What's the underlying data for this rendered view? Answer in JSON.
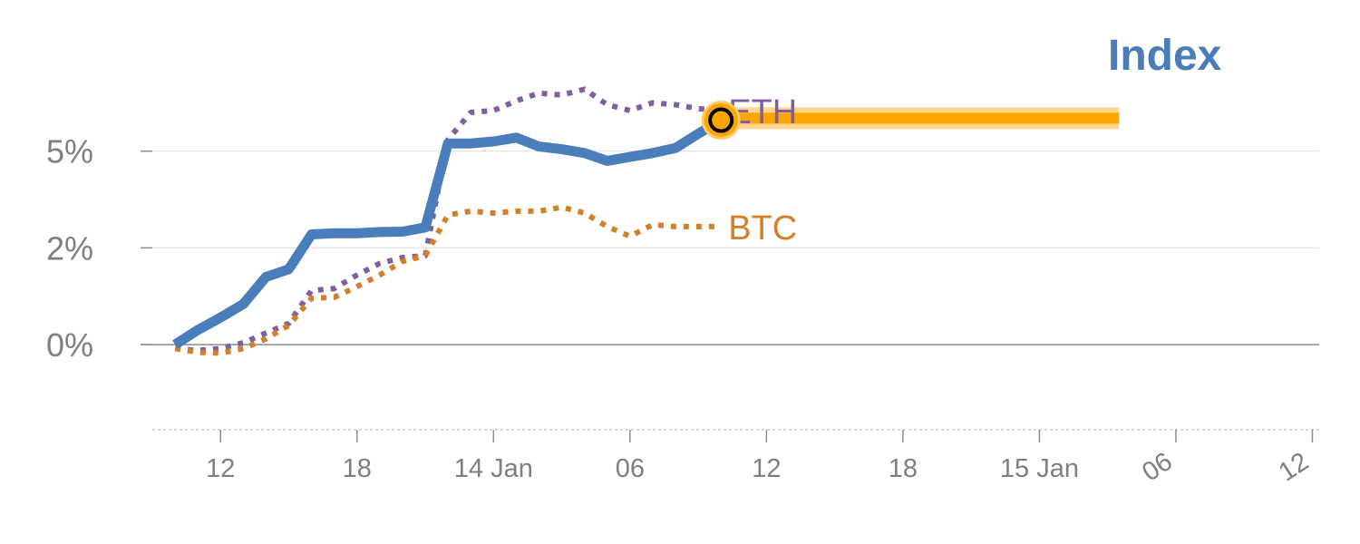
{
  "chart_data": {
    "type": "line",
    "title": "Index",
    "xlabel": "",
    "ylabel": "",
    "y_tick_labels": [
      "0%",
      "2%",
      "5%"
    ],
    "y_tick_values": [
      0,
      2.5,
      5
    ],
    "ylim": [
      -2.2,
      7.5
    ],
    "x_tick_labels": [
      "12",
      "18",
      "14 Jan",
      "06",
      "12",
      "18",
      "15 Jan",
      "06",
      "12"
    ],
    "x_tick_hours": [
      12,
      18,
      24,
      30,
      36,
      42,
      48,
      54,
      60
    ],
    "xlim_hours": [
      9.0,
      60.3
    ],
    "grid": true,
    "legend": "none",
    "series": [
      {
        "name": "Index",
        "color": "#4a7ebb",
        "style": "solid",
        "x_hours": [
          10,
          11,
          12,
          13,
          14,
          15,
          16,
          17,
          18,
          19,
          20,
          21,
          22,
          23,
          24,
          25,
          26,
          27,
          28,
          29,
          30,
          31,
          32,
          33,
          34
        ],
        "values": [
          0.0,
          0.38,
          0.7,
          1.05,
          1.75,
          1.95,
          2.85,
          2.88,
          2.88,
          2.91,
          2.92,
          3.03,
          5.2,
          5.2,
          5.25,
          5.35,
          5.12,
          5.05,
          4.95,
          4.75,
          4.85,
          4.95,
          5.08,
          5.45,
          5.8
        ]
      },
      {
        "name": "ETH",
        "color": "#7f5fa0",
        "style": "dotted",
        "x_hours": [
          10,
          11,
          12,
          13,
          14,
          15,
          16,
          17,
          18,
          19,
          20,
          21,
          22,
          23,
          24,
          25,
          26,
          27,
          28,
          29,
          30,
          31,
          32,
          33,
          34
        ],
        "values": [
          -0.1,
          -0.15,
          -0.1,
          0.05,
          0.3,
          0.55,
          1.4,
          1.45,
          1.8,
          2.1,
          2.25,
          2.3,
          5.3,
          6.0,
          6.05,
          6.3,
          6.5,
          6.45,
          6.6,
          6.2,
          6.05,
          6.25,
          6.2,
          6.1,
          6.05
        ]
      },
      {
        "name": "BTC",
        "color": "#d27f2a",
        "style": "dotted",
        "x_hours": [
          10,
          11,
          12,
          13,
          14,
          15,
          16,
          17,
          18,
          19,
          20,
          21,
          22,
          23,
          24,
          25,
          26,
          27,
          28,
          29,
          30,
          31,
          32,
          33,
          34
        ],
        "values": [
          -0.1,
          -0.2,
          -0.22,
          -0.1,
          0.15,
          0.5,
          1.2,
          1.22,
          1.5,
          1.8,
          2.15,
          2.3,
          3.35,
          3.45,
          3.4,
          3.45,
          3.45,
          3.55,
          3.4,
          3.05,
          2.8,
          3.1,
          3.05,
          3.05,
          3.05
        ]
      }
    ],
    "highlight": {
      "color": "#ffa500",
      "start_hour": 34,
      "end_hour": 51.5,
      "value": 5.85
    }
  }
}
